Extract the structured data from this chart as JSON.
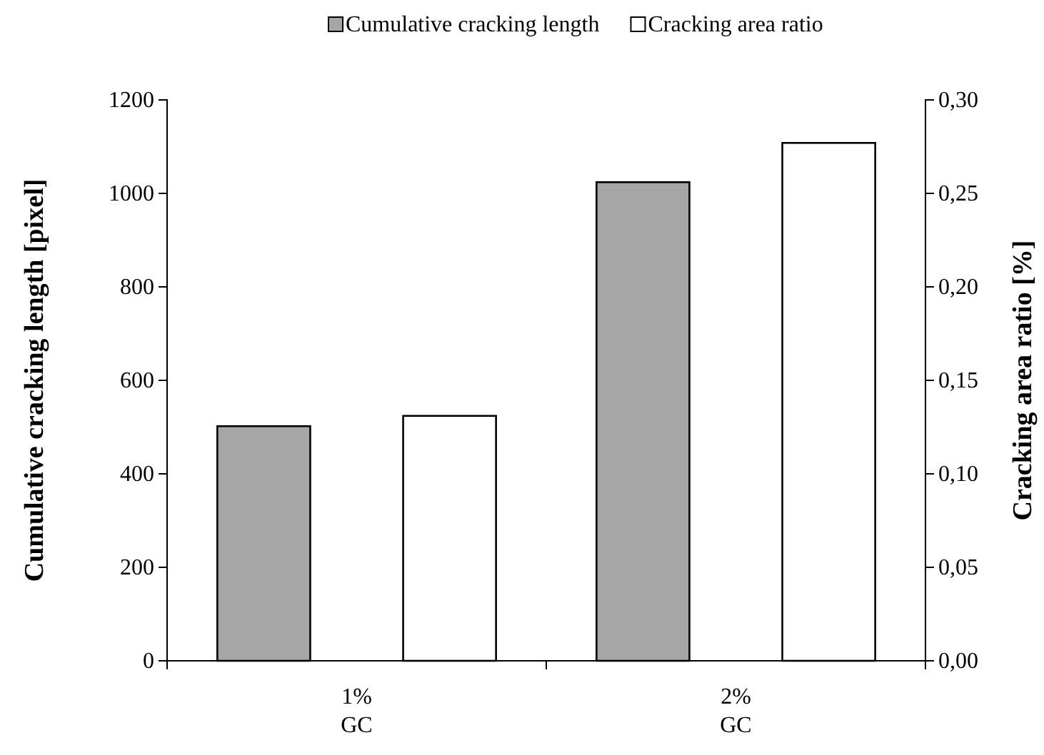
{
  "chart_data": {
    "type": "bar",
    "categories": [
      "1%\nGC",
      "2%\nGC"
    ],
    "series": [
      {
        "name": "Cumulative cracking length",
        "color": "#a6a6a6",
        "values": [
          502,
          1024
        ]
      },
      {
        "name": "Cracking area ratio",
        "color": "#ffffff",
        "values": [
          0.131,
          0.277
        ],
        "axis": "y2"
      }
    ],
    "ylabel": "Cumulative cracking length [pixel]",
    "y2label": "Cracking area ratio [%]",
    "ylim": [
      0,
      1200
    ],
    "yticks": [
      0,
      200,
      400,
      600,
      800,
      1000,
      1200
    ],
    "y2lim": [
      0,
      0.3
    ],
    "y2ticks": [
      {
        "value": 0,
        "label": "0,00"
      },
      {
        "value": 0.05,
        "label": "0,05"
      },
      {
        "value": 0.1,
        "label": "0,10"
      },
      {
        "value": 0.15,
        "label": "0,15"
      },
      {
        "value": 0.2,
        "label": "0,20"
      },
      {
        "value": 0.25,
        "label": "0,25"
      },
      {
        "value": 0.3,
        "label": "0,30"
      }
    ],
    "grid": false,
    "legend": "top"
  }
}
